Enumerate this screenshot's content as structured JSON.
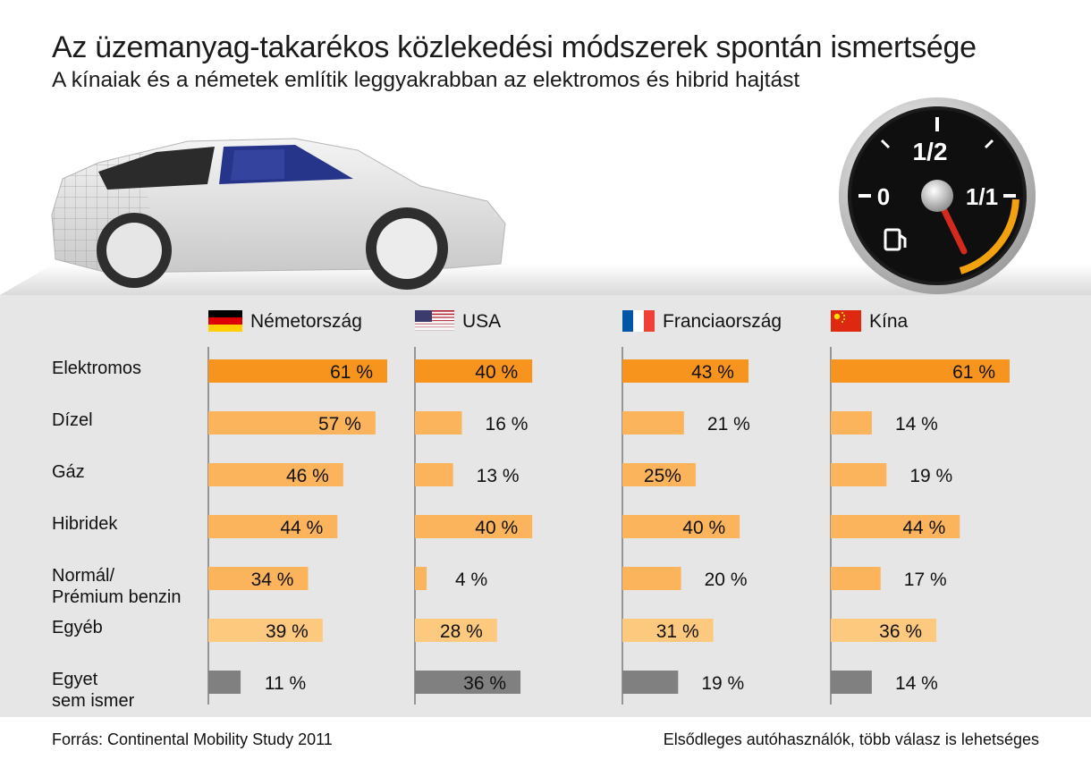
{
  "title": "Az üzemanyag-takarékos közlekedési módszerek spontán ismertsége",
  "subtitle": "A kínaiak és a németek említik leggyakrabban az elektromos és hibrid hajtást",
  "footer": {
    "source": "Forrás: Continental Mobility Study 2011",
    "note": "Elsődleges autóhasználók, több válasz is lehetséges"
  },
  "gauge": {
    "label_empty": "0",
    "label_half": "1/2",
    "label_full": "1/1"
  },
  "colors": {
    "dark_orange": "#f7941d",
    "light_orange": "#fbb45c",
    "pale_orange": "#fdc97f",
    "gray": "#808080",
    "panel": "#e6e6e6"
  },
  "chart_data": {
    "type": "bar",
    "orientation": "horizontal",
    "title": "Az üzemanyag-takarékos közlekedési módszerek spontán ismertsége",
    "categories": [
      "Elektromos",
      "Dízel",
      "Gáz",
      "Hibridek",
      "Normál/\nPrémium benzin",
      "Egyéb",
      "Egyet\nsem ismer"
    ],
    "category_lines": [
      [
        "Elektromos"
      ],
      [
        "Dízel"
      ],
      [
        "Gáz"
      ],
      [
        "Hibridek"
      ],
      [
        "Normál/",
        "Prémium benzin"
      ],
      [
        "Egyéb"
      ],
      [
        "Egyet",
        "sem ismer"
      ]
    ],
    "category_shades": [
      "dark_orange",
      "light_orange",
      "light_orange",
      "light_orange",
      "light_orange",
      "pale_orange",
      "gray"
    ],
    "unit": "%",
    "series": [
      {
        "name": "Németország",
        "flag": "germany",
        "values": [
          61,
          57,
          46,
          44,
          34,
          39,
          11
        ],
        "labels": [
          "61 %",
          "57 %",
          "46 %",
          "44 %",
          "34 %",
          "39 %",
          "11 %"
        ]
      },
      {
        "name": "USA",
        "flag": "usa",
        "values": [
          40,
          16,
          13,
          40,
          4,
          28,
          36
        ],
        "labels": [
          "40 %",
          "16 %",
          "13 %",
          "40 %",
          "4 %",
          "28 %",
          "36 %"
        ]
      },
      {
        "name": "Franciaország",
        "flag": "france",
        "values": [
          43,
          21,
          25,
          40,
          20,
          31,
          19
        ],
        "labels": [
          "43 %",
          "21 %",
          "25%",
          "40 %",
          "20 %",
          "31 %",
          "19 %"
        ]
      },
      {
        "name": "Kína",
        "flag": "china",
        "values": [
          61,
          14,
          19,
          44,
          17,
          36,
          14
        ],
        "labels": [
          "61 %",
          "14 %",
          "19 %",
          "44 %",
          "17 %",
          "36 %",
          "14 %"
        ]
      }
    ],
    "xlim": [
      0,
      61
    ],
    "grid": false,
    "legend": "top"
  }
}
